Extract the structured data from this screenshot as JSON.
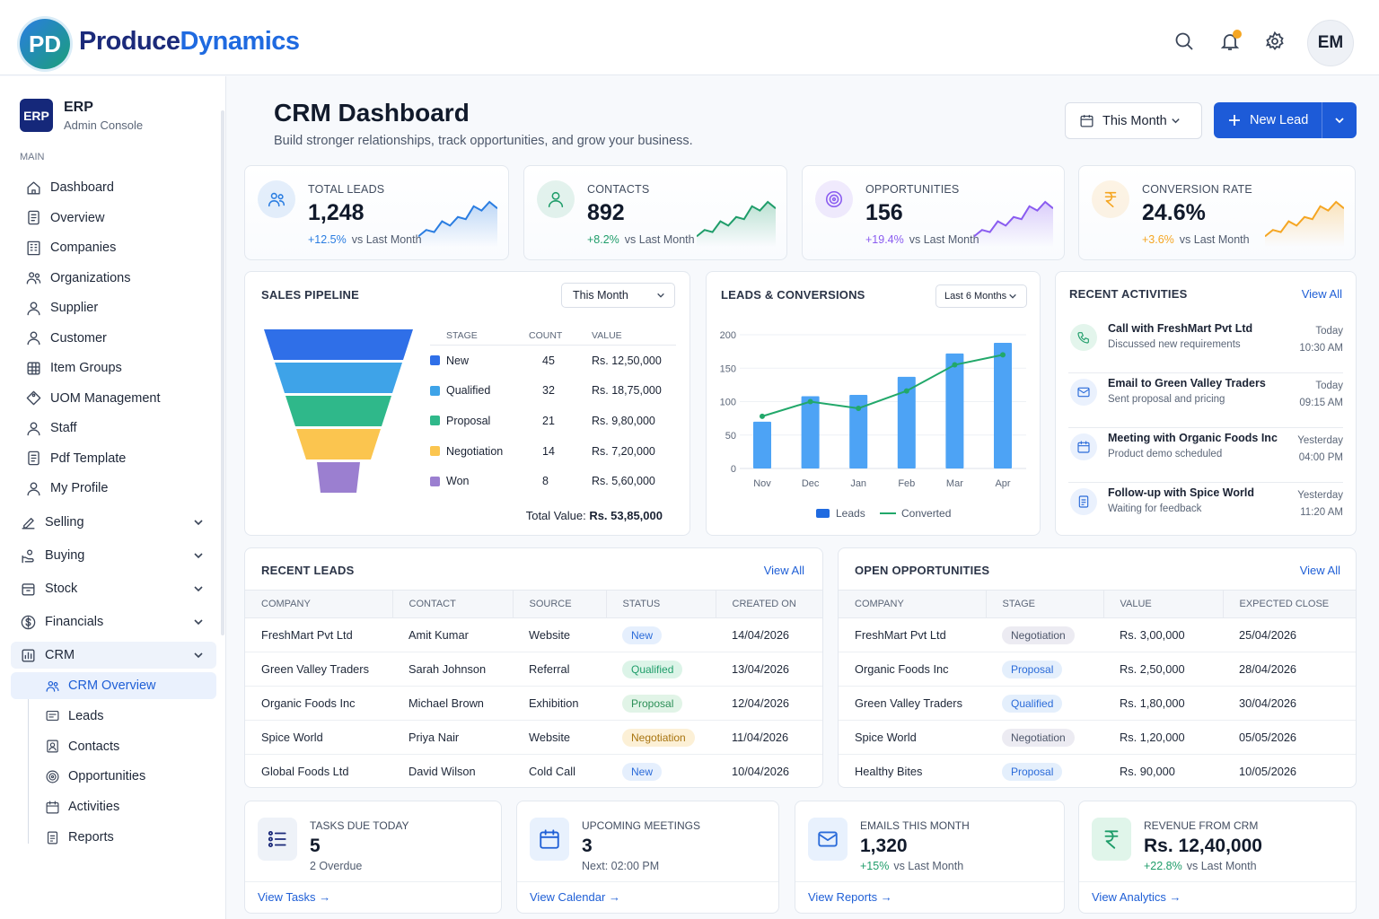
{
  "header": {
    "logo_initials": "PD",
    "brand_part1": "Produce",
    "brand_part2": "Dynamics",
    "icons": [
      "search-icon",
      "bell-icon",
      "gear-icon"
    ],
    "avatar_initials": "EM",
    "notification_color": "#f5a623"
  },
  "sidebar": {
    "badge": "ERP",
    "title": "ERP",
    "subtitle": "Admin Console",
    "section_label": "MAIN",
    "main_items": [
      {
        "label": "Dashboard",
        "icon": "home"
      },
      {
        "label": "Overview",
        "icon": "doc"
      },
      {
        "label": "Companies",
        "icon": "building"
      },
      {
        "label": "Organizations",
        "icon": "users"
      },
      {
        "label": "Supplier",
        "icon": "user"
      },
      {
        "label": "Customer",
        "icon": "user"
      },
      {
        "label": "Item Groups",
        "icon": "grid"
      },
      {
        "label": "UOM Management",
        "icon": "tag"
      },
      {
        "label": "Staff",
        "icon": "user"
      },
      {
        "label": "Pdf Template",
        "icon": "doc"
      },
      {
        "label": "My Profile",
        "icon": "user"
      }
    ],
    "groups": [
      {
        "label": "Selling",
        "icon": "edit"
      },
      {
        "label": "Buying",
        "icon": "hand"
      },
      {
        "label": "Stock",
        "icon": "box"
      },
      {
        "label": "Financials",
        "icon": "dollar"
      },
      {
        "label": "CRM",
        "icon": "chart"
      }
    ],
    "crm_items": [
      {
        "label": "CRM Overview",
        "icon": "users",
        "active": true
      },
      {
        "label": "Leads",
        "icon": "card"
      },
      {
        "label": "Contacts",
        "icon": "contact"
      },
      {
        "label": "Opportunities",
        "icon": "target"
      },
      {
        "label": "Activities",
        "icon": "calendar"
      },
      {
        "label": "Reports",
        "icon": "file"
      }
    ]
  },
  "page": {
    "title": "CRM Dashboard",
    "subtitle": "Build stronger relationships, track opportunities, and grow your business.",
    "period_select": "This Month",
    "new_lead_label": "New Lead",
    "primary_color": "#1d5bd8"
  },
  "kpis": [
    {
      "label": "TOTAL LEADS",
      "value": "1,248",
      "change": "+12.5%",
      "suffix": "vs Last Month",
      "color": "#2a7de1",
      "icon": "users"
    },
    {
      "label": "CONTACTS",
      "value": "892",
      "change": "+8.2%",
      "suffix": "vs Last Month",
      "color": "#1f9d6a",
      "icon": "user"
    },
    {
      "label": "OPPORTUNITIES",
      "value": "156",
      "change": "+19.4%",
      "suffix": "vs Last Month",
      "color": "#8a5cf0",
      "icon": "target"
    },
    {
      "label": "CONVERSION RATE",
      "value": "24.6%",
      "change": "+3.6%",
      "suffix": "vs Last Month",
      "color": "#f5a623",
      "icon": "rupee"
    }
  ],
  "pipeline": {
    "title": "SALES PIPELINE",
    "select": "This Month",
    "headers": [
      "STAGE",
      "COUNT",
      "VALUE"
    ],
    "rows": [
      {
        "stage": "New",
        "count": "45",
        "value": "Rs. 12,50,000",
        "color": "#2f6fe8"
      },
      {
        "stage": "Qualified",
        "count": "32",
        "value": "Rs. 18,75,000",
        "color": "#3ea3e8"
      },
      {
        "stage": "Proposal",
        "count": "21",
        "value": "Rs. 9,80,000",
        "color": "#2fb88a"
      },
      {
        "stage": "Negotiation",
        "count": "14",
        "value": "Rs. 7,20,000",
        "color": "#fbc54f"
      },
      {
        "stage": "Won",
        "count": "8",
        "value": "Rs. 5,60,000",
        "color": "#9b7fd0"
      }
    ],
    "total_label": "Total Value:",
    "total_value": "Rs. 53,85,000"
  },
  "chart_data": {
    "type": "bar",
    "title": "LEADS & CONVERSIONS",
    "select": "Last 6 Months",
    "categories": [
      "Nov",
      "Dec",
      "Jan",
      "Feb",
      "Mar",
      "Apr"
    ],
    "series": [
      {
        "name": "Leads",
        "type": "bar",
        "color": "#4da3f5",
        "values": [
          70,
          108,
          110,
          137,
          172,
          188
        ]
      },
      {
        "name": "Converted",
        "type": "line",
        "color": "#22a86a",
        "values": [
          78,
          100,
          90,
          116,
          155,
          170
        ]
      }
    ],
    "ylim": [
      0,
      200
    ],
    "yticks": [
      "0",
      "50",
      "100",
      "150",
      "200"
    ],
    "grid": true,
    "legend": "bottom"
  },
  "activities": {
    "title": "RECENT ACTIVITIES",
    "view_all": "View All",
    "items": [
      {
        "title": "Call with FreshMart Pvt Ltd",
        "sub": "Discussed new requirements",
        "day": "Today",
        "time": "10:30 AM",
        "icon": "phone",
        "color": "#1f9d6a",
        "bg": "#e3f5ec"
      },
      {
        "title": "Email to Green Valley Traders",
        "sub": "Sent proposal and pricing",
        "day": "Today",
        "time": "09:15 AM",
        "icon": "mail",
        "color": "#2a6bd9",
        "bg": "#eaf1fd"
      },
      {
        "title": "Meeting with Organic Foods Inc",
        "sub": "Product demo scheduled",
        "day": "Yesterday",
        "time": "04:00 PM",
        "icon": "calendar",
        "color": "#2a6bd9",
        "bg": "#eaf1fd"
      },
      {
        "title": "Follow-up with Spice World",
        "sub": "Waiting for feedback",
        "day": "Yesterday",
        "time": "11:20 AM",
        "icon": "file",
        "color": "#2a6bd9",
        "bg": "#eaf1fd"
      }
    ]
  },
  "recent_leads": {
    "title": "RECENT LEADS",
    "view_all": "View All",
    "headers": [
      "COMPANY",
      "CONTACT",
      "SOURCE",
      "STATUS",
      "CREATED ON"
    ],
    "rows": [
      [
        "FreshMart Pvt Ltd",
        "Amit Kumar",
        "Website",
        "New",
        "14/04/2026"
      ],
      [
        "Green Valley Traders",
        "Sarah Johnson",
        "Referral",
        "Qualified",
        "13/04/2026"
      ],
      [
        "Organic Foods Inc",
        "Michael Brown",
        "Exhibition",
        "Proposal",
        "12/04/2026"
      ],
      [
        "Spice World",
        "Priya Nair",
        "Website",
        "Negotiation",
        "11/04/2026"
      ],
      [
        "Global Foods Ltd",
        "David Wilson",
        "Cold Call",
        "New",
        "10/04/2026"
      ]
    ]
  },
  "open_opportunities": {
    "title": "OPEN OPPORTUNITIES",
    "view_all": "View All",
    "headers": [
      "COMPANY",
      "STAGE",
      "VALUE",
      "EXPECTED CLOSE"
    ],
    "rows": [
      [
        "FreshMart Pvt Ltd",
        "Negotiation",
        "Rs. 3,00,000",
        "25/04/2026"
      ],
      [
        "Organic Foods Inc",
        "Proposal",
        "Rs. 2,50,000",
        "28/04/2026"
      ],
      [
        "Green Valley Traders",
        "Qualified",
        "Rs. 1,80,000",
        "30/04/2026"
      ],
      [
        "Spice World",
        "Negotiation",
        "Rs. 1,20,000",
        "05/05/2026"
      ],
      [
        "Healthy Bites",
        "Proposal",
        "Rs. 90,000",
        "10/05/2026"
      ]
    ]
  },
  "bottom_cards": [
    {
      "label": "TASKS DUE TODAY",
      "value": "5",
      "change": "",
      "sub": "2 Overdue",
      "link": "View Tasks",
      "icon": "list",
      "color": "#1b2a7a",
      "bg": "#eef2f8"
    },
    {
      "label": "UPCOMING MEETINGS",
      "value": "3",
      "change": "",
      "sub": "Next: 02:00 PM",
      "link": "View Calendar",
      "icon": "calendar",
      "color": "#1f5fd6",
      "bg": "#e8f1fd"
    },
    {
      "label": "EMAILS THIS MONTH",
      "value": "1,320",
      "change": "+15%",
      "sub": "vs Last Month",
      "link": "View Reports",
      "icon": "mail",
      "color": "#2a6bd9",
      "bg": "#e8f1fd"
    },
    {
      "label": "REVENUE FROM CRM",
      "value": "Rs. 12,40,000",
      "change": "+22.8%",
      "sub": "vs Last Month",
      "link": "View Analytics",
      "icon": "rupee",
      "color": "#1f9d6a",
      "bg": "#e0f5ea"
    }
  ]
}
